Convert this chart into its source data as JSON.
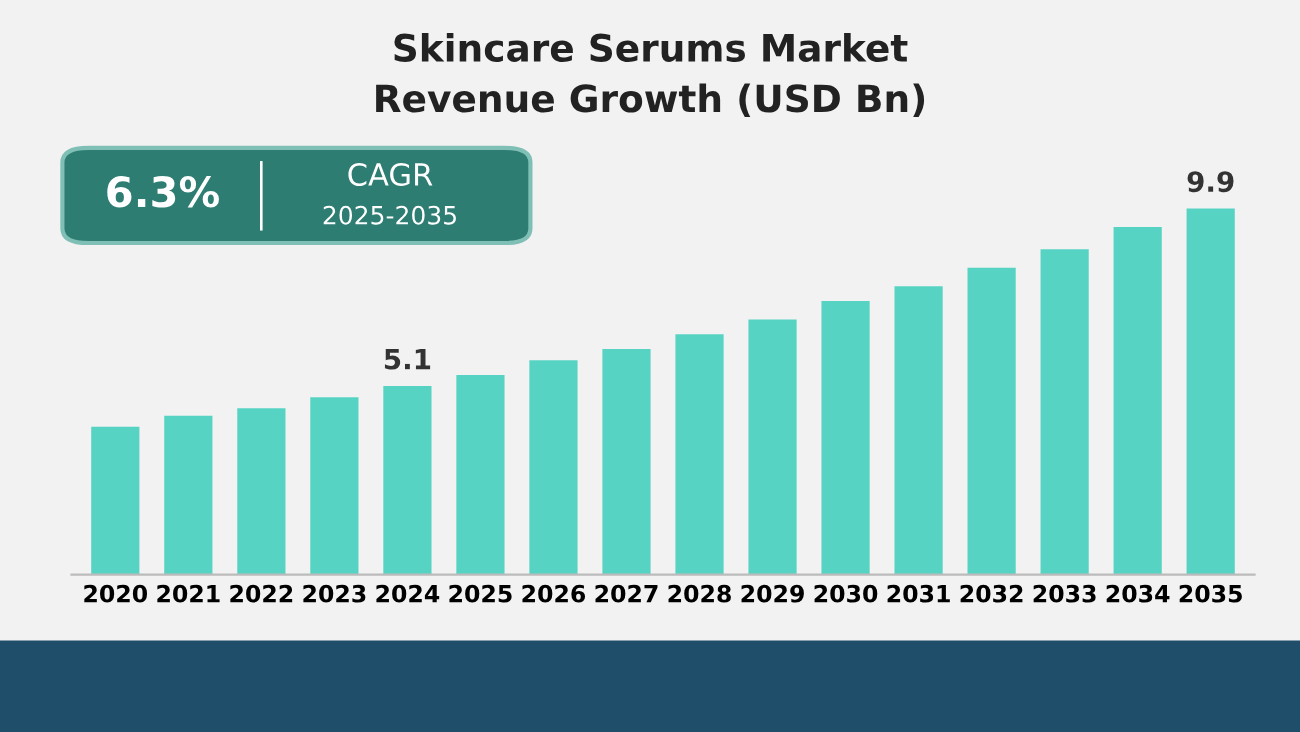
{
  "chart_data": {
    "type": "bar",
    "title": "Skincare Serums Market\nRevenue Growth (USD Bn)",
    "categories": [
      "2020",
      "2021",
      "2022",
      "2023",
      "2024",
      "2025",
      "2026",
      "2027",
      "2028",
      "2029",
      "2030",
      "2031",
      "2032",
      "2033",
      "2034",
      "2035"
    ],
    "values": [
      4.0,
      4.3,
      4.5,
      4.8,
      5.1,
      5.4,
      5.8,
      6.1,
      6.5,
      6.9,
      7.4,
      7.8,
      8.3,
      8.8,
      9.4,
      9.9
    ],
    "value_labels": [
      null,
      null,
      null,
      null,
      "5.1",
      null,
      null,
      null,
      null,
      null,
      null,
      null,
      null,
      null,
      null,
      "9.9"
    ],
    "color": "#56d3c3",
    "annotations": [
      "6.3%",
      "CAGR",
      "2025-2035"
    ],
    "tick_labels": "x",
    "grid": false
  }
}
